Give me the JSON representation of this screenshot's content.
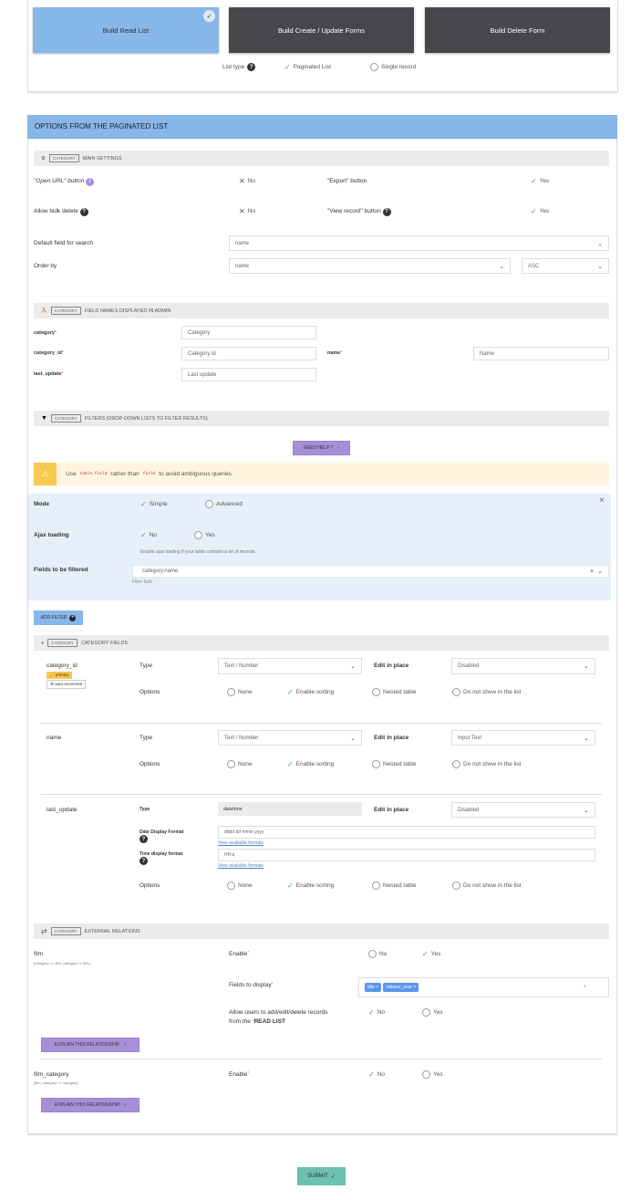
{
  "tabs": [
    {
      "label": "Build Read List",
      "active": true
    },
    {
      "label": "Build Create / Update Forms"
    },
    {
      "label": "Build Delete Form"
    }
  ],
  "list_type": {
    "label": "List type",
    "options": [
      "Paginated List",
      "Single record"
    ],
    "selected": "Paginated List"
  },
  "panel_title": "OPTIONS FROM THE PAGINATED LIST",
  "category_tag": "CATEGORY",
  "main_settings": {
    "title": "MAIN SETTINGS",
    "open_url": {
      "label": "\"Open URL\" button",
      "value": "No"
    },
    "export": {
      "label": "\"Export\" button",
      "value": "Yes"
    },
    "bulk_delete": {
      "label": "Allow bulk delete",
      "value": "No"
    },
    "view_record": {
      "label": "\"View record\" button",
      "value": "Yes"
    },
    "default_search": {
      "label": "Default field for search",
      "value": "name"
    },
    "order_by": {
      "label": "Order by",
      "field": "name",
      "direction": "ASC"
    }
  },
  "field_names": {
    "title": "FIELD NAMES DISPLAYED IN ADMIN",
    "fields": [
      {
        "name": "category",
        "value": "Category"
      },
      {
        "name": "category_id",
        "value": "Category id"
      },
      {
        "name": "name",
        "value": "Name"
      },
      {
        "name": "last_update",
        "value": "Last update"
      }
    ]
  },
  "filters": {
    "title": "FILTERS (DROP-DOWN LISTS TO FILTER RESULTS)",
    "help": "NEED HELP ?",
    "warn_use": "Use",
    "warn_code1": "table.field",
    "warn_mid": "rather than",
    "warn_code2": "field",
    "warn_end": "to avoid ambiguous queries.",
    "mode_label": "Mode",
    "mode_simple": "Simple",
    "mode_advanced": "Advanced",
    "ajax_label": "Ajax loading",
    "ajax_no": "No",
    "ajax_yes": "Yes",
    "ajax_hint": "Enable ajax loading if your table contains a lot of records.",
    "fields_label": "Fields to be filtered",
    "fields_value": "category.name",
    "filter_hint": "Filter field",
    "add": "ADD FILTER"
  },
  "category_fields": {
    "title": "CATEGORY FIELDS",
    "type_label": "Type",
    "edit_label": "Edit in place",
    "options_label": "Options",
    "opts": [
      "None",
      "Enable sorting",
      "Nested table",
      "Do not show in the list"
    ],
    "rows": [
      {
        "name": "category_id",
        "badge_primary": "primary",
        "badge_ai": "auto-increment",
        "type": "Text / Number",
        "edit": "Disabled"
      },
      {
        "name": "name",
        "type": "Text / Number",
        "edit": "Input Text"
      },
      {
        "name": "last_update",
        "type": "datetime",
        "edit": "Disabled",
        "date_label": "Date Display Format",
        "date_value": "dddd dd mmm yyyy",
        "time_label": "Time display format",
        "time_value": "HH:a",
        "formats_link": "View available formats"
      }
    ]
  },
  "relations": {
    "title": "EXTERNAL RELATIONS",
    "enable": "Enable",
    "no": "No",
    "yes": "Yes",
    "explain": "EXPLAIN THIS RELATIONSHIP",
    "film": {
      "name": "film",
      "path": "(category => film_category => film)",
      "enabled": "Yes",
      "fields_label": "Fields to display",
      "fields": [
        "title",
        "release_year"
      ],
      "allow_label1": "Allow users to add/edit/delete records",
      "allow_label2": "from the",
      "allow_label3": "READ LIST",
      "allow": "No"
    },
    "film_category": {
      "name": "film_category",
      "path": "(film_category => category)",
      "enabled": "No"
    }
  },
  "submit": "SUBMIT",
  "colors": {
    "accent_blue": "#87b7e8",
    "dark_tile": "#47464b",
    "purple": "#a68fd6",
    "submit": "#6dbfae",
    "warning": "#fff5df"
  }
}
